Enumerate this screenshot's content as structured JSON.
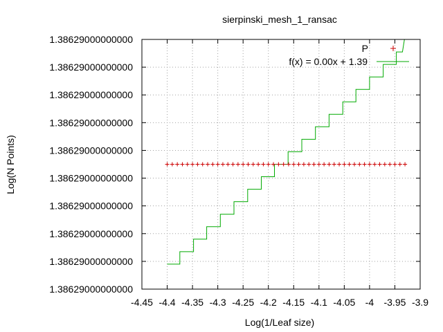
{
  "chart_data": {
    "type": "scatter",
    "title": "sierpinski_mesh_1_ransac",
    "xlabel": "Log(1/Leaf size)",
    "ylabel": "Log(N Points)",
    "xlim": [
      -4.45,
      -3.9
    ],
    "x_ticks": [
      -4.45,
      -4.4,
      -4.35,
      -4.3,
      -4.25,
      -4.2,
      -4.15,
      -4.1,
      -4.05,
      -4.0,
      -3.95,
      -3.9
    ],
    "x_tick_labels": [
      "-4.45",
      "-4.4",
      "-4.35",
      "-4.3",
      "-4.25",
      "-4.2",
      "-4.15",
      "-4.1",
      "-4.05",
      "-4",
      "-3.95",
      "-3.9"
    ],
    "y_tick_labels": [
      "1.38629000000000",
      "1.38629000000000",
      "1.38629000000000",
      "1.38629000000000",
      "1.38629000000000",
      "1.38629000000000",
      "1.38629000000000",
      "1.38629000000000",
      "1.38629000000000",
      "1.38629000000000"
    ],
    "grid": true,
    "legend_position": "top-right",
    "series": [
      {
        "name": "P",
        "kind": "points",
        "color": "#cc0000",
        "x": [
          -4.4,
          -4.39,
          -4.38,
          -4.37,
          -4.36,
          -4.35,
          -4.34,
          -4.33,
          -4.32,
          -4.31,
          -4.3,
          -4.29,
          -4.28,
          -4.27,
          -4.26,
          -4.25,
          -4.24,
          -4.23,
          -4.22,
          -4.21,
          -4.2,
          -4.19,
          -4.18,
          -4.17,
          -4.16,
          -4.15,
          -4.14,
          -4.13,
          -4.12,
          -4.11,
          -4.1,
          -4.09,
          -4.08,
          -4.07,
          -4.06,
          -4.05,
          -4.04,
          -4.03,
          -4.02,
          -4.01,
          -4.0,
          -3.99,
          -3.98,
          -3.97,
          -3.96,
          -3.95,
          -3.94,
          -3.93
        ],
        "y_level": 0.5
      },
      {
        "name": "f(x) = 0.00x + 1.39",
        "kind": "step-line",
        "color": "#00aa00",
        "steps": [
          {
            "x0": -4.4,
            "x1": -4.375,
            "level": 0.1
          },
          {
            "x0": -4.375,
            "x1": -4.348,
            "level": 0.15
          },
          {
            "x0": -4.348,
            "x1": -4.322,
            "level": 0.2
          },
          {
            "x0": -4.322,
            "x1": -4.295,
            "level": 0.25
          },
          {
            "x0": -4.295,
            "x1": -4.268,
            "level": 0.3
          },
          {
            "x0": -4.268,
            "x1": -4.241,
            "level": 0.35
          },
          {
            "x0": -4.241,
            "x1": -4.214,
            "level": 0.4
          },
          {
            "x0": -4.214,
            "x1": -4.188,
            "level": 0.45
          },
          {
            "x0": -4.188,
            "x1": -4.161,
            "level": 0.5
          },
          {
            "x0": -4.161,
            "x1": -4.134,
            "level": 0.55
          },
          {
            "x0": -4.134,
            "x1": -4.107,
            "level": 0.6
          },
          {
            "x0": -4.107,
            "x1": -4.08,
            "level": 0.65
          },
          {
            "x0": -4.08,
            "x1": -4.053,
            "level": 0.7
          },
          {
            "x0": -4.053,
            "x1": -4.027,
            "level": 0.75
          },
          {
            "x0": -4.027,
            "x1": -4.0,
            "level": 0.8
          },
          {
            "x0": -4.0,
            "x1": -3.973,
            "level": 0.85
          },
          {
            "x0": -3.973,
            "x1": -3.947,
            "level": 0.9
          },
          {
            "x0": -3.947,
            "x1": -3.935,
            "level": 0.95
          }
        ]
      }
    ]
  }
}
